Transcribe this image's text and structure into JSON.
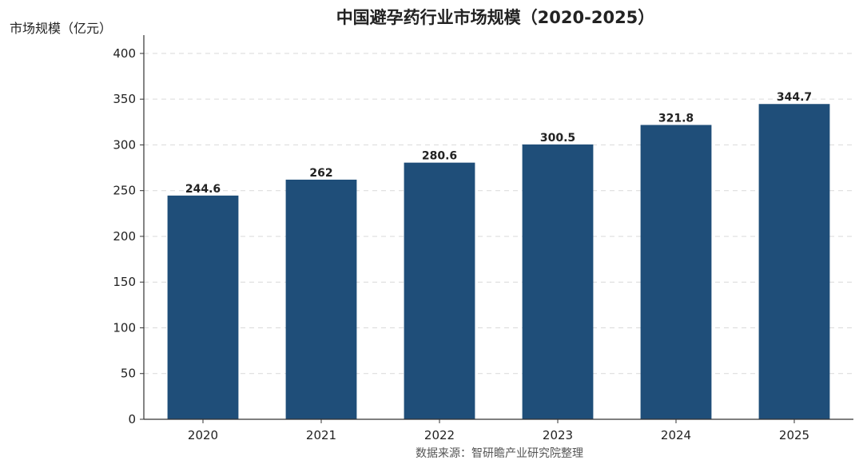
{
  "chart_data": {
    "type": "bar",
    "title": "中国避孕药行业市场规模（2020-2025）",
    "ylabel": "市场规模（亿元）",
    "xlabel": "",
    "categories": [
      "2020",
      "2021",
      "2022",
      "2023",
      "2024",
      "2025"
    ],
    "values": [
      244.6,
      262,
      280.6,
      300.5,
      321.8,
      344.7
    ],
    "data_labels": [
      "244.6",
      "262",
      "280.6",
      "300.5",
      "321.8",
      "344.7"
    ],
    "ylim": [
      0,
      420
    ],
    "yticks": [
      0,
      50,
      100,
      150,
      200,
      250,
      300,
      350,
      400
    ],
    "grid": true,
    "bar_color": "#1f4e79",
    "source": "数据来源：智研瞻产业研究院整理"
  }
}
